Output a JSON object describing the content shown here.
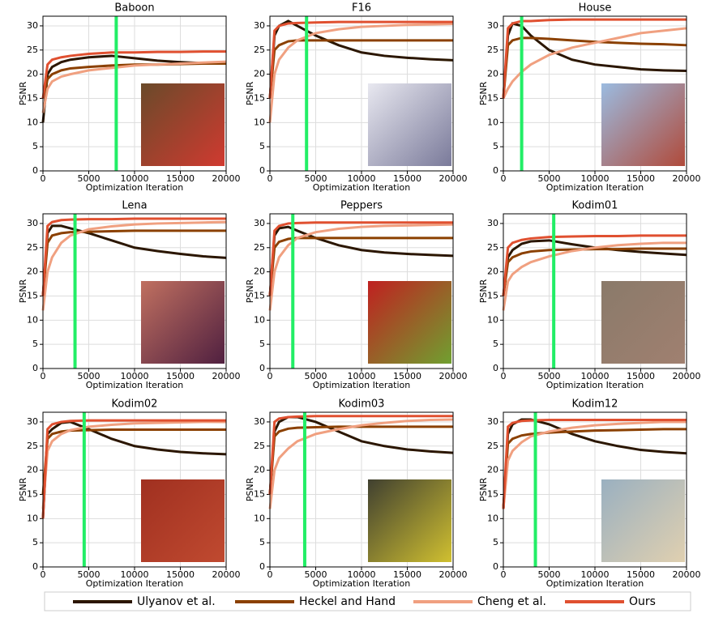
{
  "legend": [
    {
      "name": "Ulyanov et al.",
      "color": "#2b1600"
    },
    {
      "name": "Heckel and Hand",
      "color": "#8b4000"
    },
    {
      "name": "Cheng et al.",
      "color": "#f0a080"
    },
    {
      "name": "Ours",
      "color": "#e05030"
    }
  ],
  "chart_data": [
    {
      "type": "line",
      "title": "Baboon",
      "xlabel": "Optimization Iteration",
      "ylabel": "PSNR",
      "xlim": [
        0,
        20000
      ],
      "ylim": [
        0,
        32
      ],
      "xticks": [
        0,
        5000,
        10000,
        15000,
        20000
      ],
      "yticks": [
        0,
        5,
        10,
        15,
        20,
        25,
        30
      ],
      "grid": true,
      "vline": {
        "x": 8000,
        "color": "#22ee66"
      },
      "x": [
        0,
        500,
        1000,
        2000,
        3000,
        5000,
        7500,
        10000,
        12500,
        15000,
        17500,
        20000
      ],
      "series": [
        {
          "values": [
            10,
            20,
            21.5,
            22.5,
            23,
            23.5,
            23.8,
            23.3,
            22.8,
            22.5,
            22.3,
            22.2
          ]
        },
        {
          "values": [
            15,
            19,
            20,
            20.8,
            21.2,
            21.5,
            21.8,
            22,
            22,
            22.1,
            22.2,
            22.2
          ]
        },
        {
          "values": [
            12,
            17,
            18.5,
            19.5,
            20,
            20.8,
            21.3,
            21.8,
            22,
            22.2,
            22.4,
            22.6
          ]
        },
        {
          "values": [
            15,
            22,
            23,
            23.5,
            23.8,
            24.2,
            24.5,
            24.5,
            24.6,
            24.6,
            24.7,
            24.7
          ]
        }
      ]
    },
    {
      "type": "line",
      "title": "F16",
      "xlabel": "Optimization Iteration",
      "ylabel": "PSNR",
      "xlim": [
        0,
        20000
      ],
      "ylim": [
        0,
        32
      ],
      "xticks": [
        0,
        5000,
        10000,
        15000,
        20000
      ],
      "yticks": [
        0,
        5,
        10,
        15,
        20,
        25,
        30
      ],
      "grid": true,
      "vline": {
        "x": 4000,
        "color": "#22ee66"
      },
      "x": [
        0,
        500,
        1000,
        2000,
        3000,
        5000,
        7500,
        10000,
        12500,
        15000,
        17500,
        20000
      ],
      "series": [
        {
          "values": [
            15,
            28,
            30,
            31,
            30,
            28,
            26,
            24.5,
            23.8,
            23.4,
            23.1,
            22.9
          ]
        },
        {
          "values": [
            15,
            25,
            26,
            26.8,
            27,
            27,
            27,
            27,
            27,
            27,
            27,
            27
          ]
        },
        {
          "values": [
            10,
            20,
            23,
            25.5,
            27,
            28.5,
            29.3,
            29.8,
            30,
            30.2,
            30.3,
            30.4
          ]
        },
        {
          "values": [
            15,
            29,
            30,
            30.5,
            30.6,
            30.7,
            30.8,
            30.8,
            30.8,
            30.8,
            30.8,
            30.8
          ]
        }
      ]
    },
    {
      "type": "line",
      "title": "House",
      "xlabel": "Optimization Iteration",
      "ylabel": "PSNR",
      "xlim": [
        0,
        20000
      ],
      "ylim": [
        0,
        32
      ],
      "xticks": [
        0,
        5000,
        10000,
        15000,
        20000
      ],
      "yticks": [
        0,
        5,
        10,
        15,
        20,
        25,
        30
      ],
      "grid": true,
      "vline": {
        "x": 2000,
        "color": "#22ee66"
      },
      "x": [
        0,
        500,
        1000,
        2000,
        3000,
        5000,
        7500,
        10000,
        12500,
        15000,
        17500,
        20000
      ],
      "series": [
        {
          "values": [
            15,
            28,
            30.5,
            30,
            28,
            25,
            23,
            22,
            21.5,
            21,
            20.8,
            20.7
          ]
        },
        {
          "values": [
            15,
            26,
            27,
            27.5,
            27.5,
            27.3,
            27,
            26.7,
            26.5,
            26.3,
            26.2,
            26
          ]
        },
        {
          "values": [
            15,
            17,
            18.5,
            20.5,
            22,
            24,
            25.5,
            26.5,
            27.5,
            28.5,
            29,
            29.5
          ]
        },
        {
          "values": [
            15,
            29.5,
            30.5,
            31,
            31,
            31.2,
            31.3,
            31.3,
            31.3,
            31.3,
            31.3,
            31.3
          ]
        }
      ]
    },
    {
      "type": "line",
      "title": "Lena",
      "xlabel": "Optimization Iteration",
      "ylabel": "PSNR",
      "xlim": [
        0,
        20000
      ],
      "ylim": [
        0,
        32
      ],
      "xticks": [
        0,
        5000,
        10000,
        15000,
        20000
      ],
      "yticks": [
        0,
        5,
        10,
        15,
        20,
        25,
        30
      ],
      "grid": true,
      "vline": {
        "x": 3500,
        "color": "#22ee66"
      },
      "x": [
        0,
        500,
        1000,
        2000,
        3000,
        5000,
        7500,
        10000,
        12500,
        15000,
        17500,
        20000
      ],
      "series": [
        {
          "values": [
            15,
            28,
            29.5,
            29.5,
            29,
            28,
            26.5,
            25,
            24.3,
            23.7,
            23.2,
            22.9
          ]
        },
        {
          "values": [
            15,
            26,
            27.5,
            28,
            28.2,
            28.3,
            28.4,
            28.5,
            28.5,
            28.5,
            28.5,
            28.5
          ]
        },
        {
          "values": [
            12,
            20,
            23,
            26,
            27.5,
            28.8,
            29.4,
            29.8,
            30,
            30.1,
            30.2,
            30.3
          ]
        },
        {
          "values": [
            15,
            29.5,
            30.3,
            30.7,
            30.8,
            30.9,
            30.9,
            31,
            31,
            31,
            31,
            31
          ]
        }
      ]
    },
    {
      "type": "line",
      "title": "Peppers",
      "xlabel": "Optimization Iteration",
      "ylabel": "PSNR",
      "xlim": [
        0,
        20000
      ],
      "ylim": [
        0,
        32
      ],
      "xticks": [
        0,
        5000,
        10000,
        15000,
        20000
      ],
      "yticks": [
        0,
        5,
        10,
        15,
        20,
        25,
        30
      ],
      "grid": true,
      "vline": {
        "x": 2500,
        "color": "#22ee66"
      },
      "x": [
        0,
        500,
        1000,
        2000,
        3000,
        5000,
        7500,
        10000,
        12500,
        15000,
        17500,
        20000
      ],
      "series": [
        {
          "values": [
            15,
            27.5,
            29,
            29.3,
            28.5,
            27,
            25.5,
            24.5,
            24,
            23.7,
            23.5,
            23.3
          ]
        },
        {
          "values": [
            15,
            25,
            26.2,
            26.8,
            27,
            27,
            27,
            27,
            27,
            27,
            27,
            27
          ]
        },
        {
          "values": [
            12,
            20,
            23,
            25.5,
            27,
            28.2,
            28.9,
            29.3,
            29.5,
            29.6,
            29.7,
            29.8
          ]
        },
        {
          "values": [
            15,
            28.5,
            29.5,
            30,
            30.1,
            30.2,
            30.2,
            30.2,
            30.2,
            30.2,
            30.2,
            30.2
          ]
        }
      ]
    },
    {
      "type": "line",
      "title": "Kodim01",
      "xlabel": "Optimization Iteration",
      "ylabel": "PSNR",
      "xlim": [
        0,
        20000
      ],
      "ylim": [
        0,
        32
      ],
      "xticks": [
        0,
        5000,
        10000,
        15000,
        20000
      ],
      "yticks": [
        0,
        5,
        10,
        15,
        20,
        25,
        30
      ],
      "grid": true,
      "vline": {
        "x": 5500,
        "color": "#22ee66"
      },
      "x": [
        0,
        500,
        1000,
        2000,
        3000,
        5000,
        7500,
        10000,
        12500,
        15000,
        17500,
        20000
      ],
      "series": [
        {
          "values": [
            15,
            23,
            24.5,
            25.8,
            26.3,
            26.5,
            25.7,
            25,
            24.5,
            24.1,
            23.8,
            23.5
          ]
        },
        {
          "values": [
            15,
            22,
            23,
            23.8,
            24.2,
            24.5,
            24.6,
            24.7,
            24.7,
            24.8,
            24.8,
            24.8
          ]
        },
        {
          "values": [
            12,
            18,
            19.5,
            21,
            22,
            23.2,
            24.3,
            25,
            25.5,
            25.8,
            26,
            26
          ]
        },
        {
          "values": [
            15,
            25,
            26,
            26.6,
            26.9,
            27.2,
            27.3,
            27.4,
            27.4,
            27.5,
            27.5,
            27.5
          ]
        }
      ]
    },
    {
      "type": "line",
      "title": "Kodim02",
      "xlabel": "Optimization Iteration",
      "ylabel": "PSNR",
      "xlim": [
        0,
        20000
      ],
      "ylim": [
        0,
        32
      ],
      "xticks": [
        0,
        5000,
        10000,
        15000,
        20000
      ],
      "yticks": [
        0,
        5,
        10,
        15,
        20,
        25,
        30
      ],
      "grid": true,
      "vline": {
        "x": 4500,
        "color": "#22ee66"
      },
      "x": [
        0,
        500,
        1000,
        2000,
        3000,
        5000,
        7500,
        10000,
        12500,
        15000,
        17500,
        20000
      ],
      "series": [
        {
          "values": [
            10,
            27.5,
            28.5,
            29.8,
            30,
            28.5,
            26.5,
            25,
            24.3,
            23.8,
            23.5,
            23.3
          ]
        },
        {
          "values": [
            15,
            26.5,
            27.5,
            28,
            28.2,
            28.3,
            28.4,
            28.4,
            28.4,
            28.4,
            28.4,
            28.4
          ]
        },
        {
          "values": [
            12,
            24,
            26,
            27.5,
            28.3,
            29,
            29.4,
            29.7,
            29.8,
            29.9,
            30,
            30
          ]
        },
        {
          "values": [
            10,
            28.5,
            29.5,
            30,
            30.2,
            30.3,
            30.3,
            30.3,
            30.3,
            30.3,
            30.3,
            30.3
          ]
        }
      ]
    },
    {
      "type": "line",
      "title": "Kodim03",
      "xlabel": "Optimization Iteration",
      "ylabel": "PSNR",
      "xlim": [
        0,
        20000
      ],
      "ylim": [
        0,
        32
      ],
      "xticks": [
        0,
        5000,
        10000,
        15000,
        20000
      ],
      "yticks": [
        0,
        5,
        10,
        15,
        20,
        25,
        30
      ],
      "grid": true,
      "vline": {
        "x": 3800,
        "color": "#22ee66"
      },
      "x": [
        0,
        500,
        1000,
        2000,
        3000,
        5000,
        7500,
        10000,
        12500,
        15000,
        17500,
        20000
      ],
      "series": [
        {
          "values": [
            15,
            28,
            30,
            31,
            31,
            30,
            28,
            26,
            25,
            24.3,
            23.9,
            23.6
          ]
        },
        {
          "values": [
            15,
            27,
            28,
            28.6,
            28.8,
            28.9,
            29,
            29,
            29,
            29,
            29,
            29
          ]
        },
        {
          "values": [
            12,
            20,
            22.5,
            24.5,
            26,
            27.5,
            28.5,
            29.3,
            29.8,
            30.2,
            30.4,
            30.5
          ]
        },
        {
          "values": [
            15,
            30,
            30.7,
            31,
            31.1,
            31.2,
            31.2,
            31.2,
            31.2,
            31.2,
            31.2,
            31.2
          ]
        }
      ]
    },
    {
      "type": "line",
      "title": "Kodim12",
      "xlabel": "Optimization Iteration",
      "ylabel": "PSNR",
      "xlim": [
        0,
        20000
      ],
      "ylim": [
        0,
        32
      ],
      "xticks": [
        0,
        5000,
        10000,
        15000,
        20000
      ],
      "yticks": [
        0,
        5,
        10,
        15,
        20,
        25,
        30
      ],
      "grid": true,
      "vline": {
        "x": 3500,
        "color": "#22ee66"
      },
      "x": [
        0,
        500,
        1000,
        2000,
        3000,
        5000,
        7500,
        10000,
        12500,
        15000,
        17500,
        20000
      ],
      "series": [
        {
          "values": [
            12,
            27.5,
            29.5,
            30.5,
            30.5,
            29.5,
            27.5,
            26,
            25,
            24.2,
            23.8,
            23.5
          ]
        },
        {
          "values": [
            12,
            25.5,
            26.5,
            27.2,
            27.5,
            27.8,
            28,
            28.2,
            28.3,
            28.4,
            28.5,
            28.5
          ]
        },
        {
          "values": [
            12,
            22,
            24,
            25.8,
            27,
            28,
            28.8,
            29.3,
            29.6,
            29.8,
            30,
            30
          ]
        },
        {
          "values": [
            12,
            29,
            29.8,
            30.2,
            30.3,
            30.4,
            30.4,
            30.4,
            30.4,
            30.4,
            30.4,
            30.4
          ]
        }
      ]
    }
  ]
}
